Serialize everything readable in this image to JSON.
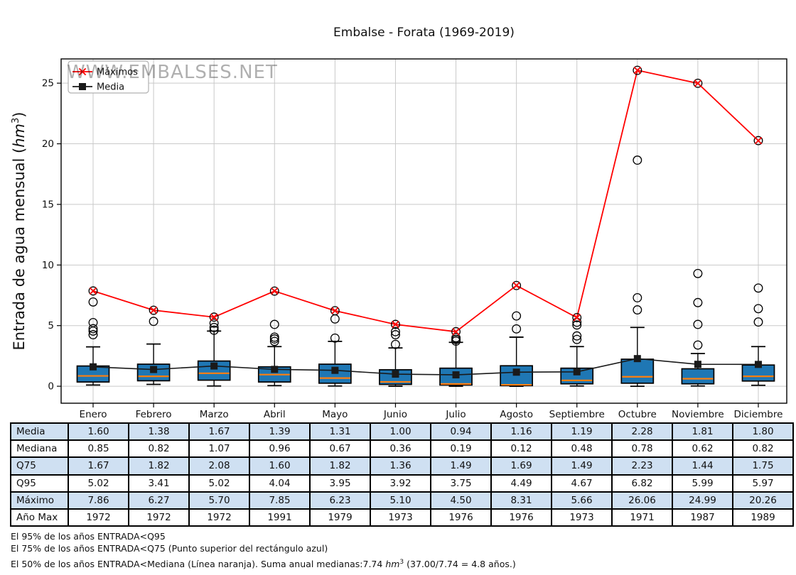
{
  "watermark": {
    "text": "WWW.EMBALSES.NET",
    "color": "#1f77b4",
    "opacity": 0.33
  },
  "chart_data": {
    "type": "boxplot",
    "title": "Embalse - Forata (1969-2019)",
    "categories": [
      "Enero",
      "Febrero",
      "Marzo",
      "Abril",
      "Mayo",
      "Junio",
      "Julio",
      "Agosto",
      "Septiembre",
      "Octubre",
      "Noviembre",
      "Diciembre"
    ],
    "grid": true,
    "legend_position": "top-left",
    "y_axis": {
      "ticks": [
        0,
        5,
        10,
        15,
        20,
        25
      ],
      "ylim": [
        -1.4,
        27.0
      ],
      "label_pre": "Entrada de agua mensual (",
      "label_math": "hm",
      "label_sup": "3",
      "label_post": ")",
      "label_color": "#1f77b4"
    },
    "series": [
      {
        "name": "Máximos",
        "color": "#ff0000",
        "marker": "x-circle",
        "values": [
          7.86,
          6.27,
          5.7,
          7.85,
          6.23,
          5.1,
          4.5,
          8.31,
          5.66,
          26.06,
          24.99,
          20.26
        ]
      },
      {
        "name": "Media",
        "color": "#1a1a1a",
        "marker": "square",
        "values": [
          1.6,
          1.38,
          1.67,
          1.39,
          1.31,
          1.0,
          0.94,
          1.16,
          1.19,
          2.28,
          1.81,
          1.8
        ]
      }
    ],
    "boxes": {
      "fill": "#1f77b4",
      "edge_color": "#000000",
      "median_color": "#ff7f0e",
      "stats": [
        {
          "whislo": 0.1,
          "q1": 0.35,
          "median": 0.85,
          "q3": 1.67,
          "whishi": 3.25,
          "outliers": [
            4.25,
            4.55,
            4.75,
            5.25,
            6.95
          ]
        },
        {
          "whislo": 0.15,
          "q1": 0.45,
          "median": 0.82,
          "q3": 1.82,
          "whishi": 3.48,
          "outliers": [
            5.35
          ]
        },
        {
          "whislo": 0.02,
          "q1": 0.5,
          "median": 1.07,
          "q3": 2.08,
          "whishi": 4.55,
          "outliers": [
            4.62,
            4.85,
            5.2
          ]
        },
        {
          "whislo": 0.05,
          "q1": 0.35,
          "median": 0.96,
          "q3": 1.6,
          "whishi": 3.27,
          "outliers": [
            3.7,
            3.9,
            4.05,
            5.1
          ]
        },
        {
          "whislo": 0.02,
          "q1": 0.25,
          "median": 0.67,
          "q3": 1.82,
          "whishi": 3.7,
          "outliers": [
            3.97,
            5.55
          ]
        },
        {
          "whislo": 0.01,
          "q1": 0.15,
          "median": 0.36,
          "q3": 1.36,
          "whishi": 3.16,
          "outliers": [
            3.45,
            4.25,
            4.5
          ]
        },
        {
          "whislo": 0.0,
          "q1": 0.1,
          "median": 0.19,
          "q3": 1.49,
          "whishi": 3.62,
          "outliers": [
            3.72,
            3.85,
            4.0
          ]
        },
        {
          "whislo": 0.0,
          "q1": 0.05,
          "median": 0.12,
          "q3": 1.69,
          "whishi": 4.05,
          "outliers": [
            4.73,
            5.8
          ]
        },
        {
          "whislo": 0.02,
          "q1": 0.2,
          "median": 0.48,
          "q3": 1.49,
          "whishi": 3.27,
          "outliers": [
            3.86,
            4.15,
            5.05,
            5.28
          ]
        },
        {
          "whislo": 0.0,
          "q1": 0.25,
          "median": 0.78,
          "q3": 2.23,
          "whishi": 4.85,
          "outliers": [
            6.3,
            7.3,
            18.65
          ]
        },
        {
          "whislo": 0.02,
          "q1": 0.2,
          "median": 0.62,
          "q3": 1.44,
          "whishi": 2.7,
          "outliers": [
            3.4,
            5.1,
            6.9,
            9.3
          ]
        },
        {
          "whislo": 0.08,
          "q1": 0.43,
          "median": 0.82,
          "q3": 1.75,
          "whishi": 3.27,
          "outliers": [
            5.3,
            6.4,
            8.1
          ]
        }
      ]
    }
  },
  "table": {
    "stripe_color": "#cfe0f2",
    "row_labels": [
      "Media",
      "Mediana",
      "Q75",
      "Q95",
      "Máximo",
      "Año Max"
    ],
    "columns": [
      "Enero",
      "Febrero",
      "Marzo",
      "Abril",
      "Mayo",
      "Junio",
      "Julio",
      "Agosto",
      "Septiembre",
      "Octubre",
      "Noviembre",
      "Diciembre"
    ],
    "rows": [
      [
        "1.60",
        "1.38",
        "1.67",
        "1.39",
        "1.31",
        "1.00",
        "0.94",
        "1.16",
        "1.19",
        "2.28",
        "1.81",
        "1.80"
      ],
      [
        "0.85",
        "0.82",
        "1.07",
        "0.96",
        "0.67",
        "0.36",
        "0.19",
        "0.12",
        "0.48",
        "0.78",
        "0.62",
        "0.82"
      ],
      [
        "1.67",
        "1.82",
        "2.08",
        "1.60",
        "1.82",
        "1.36",
        "1.49",
        "1.69",
        "1.49",
        "2.23",
        "1.44",
        "1.75"
      ],
      [
        "5.02",
        "3.41",
        "5.02",
        "4.04",
        "3.95",
        "3.92",
        "3.75",
        "4.49",
        "4.67",
        "6.82",
        "5.99",
        "5.97"
      ],
      [
        "7.86",
        "6.27",
        "5.70",
        "7.85",
        "6.23",
        "5.10",
        "4.50",
        "8.31",
        "5.66",
        "26.06",
        "24.99",
        "20.26"
      ],
      [
        "1972",
        "1972",
        "1972",
        "1991",
        "1979",
        "1973",
        "1976",
        "1976",
        "1973",
        "1971",
        "1987",
        "1989"
      ]
    ]
  },
  "footer": {
    "note_q95": "El 95% de los años ENTRADA<Q95",
    "note_q75": "El 75% de los años ENTRADA<Q75 (Punto superior del rectángulo azul)",
    "note_mediana_pre": "El 50% de los años ENTRADA<Mediana (Línea naranja). Suma anual medianas:7.74 ",
    "note_mediana_math": "hm",
    "note_mediana_sup": "3",
    "note_mediana_post": " (37.00/7.74 = 4.8 años.)"
  }
}
